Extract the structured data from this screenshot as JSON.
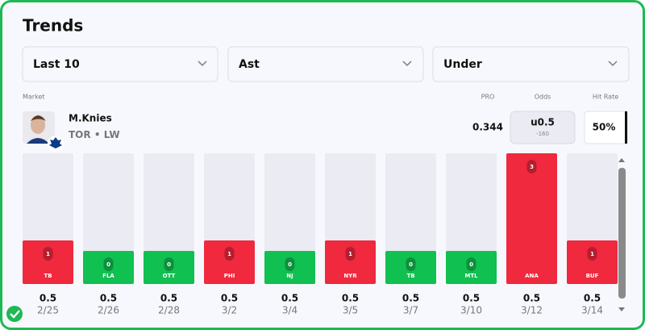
{
  "header": {
    "title": "Trends"
  },
  "filters": [
    "Last 10",
    "Ast",
    "Under"
  ],
  "labels": {
    "market": "Market",
    "pro": "PRO",
    "odds": "Odds",
    "hit_rate": "Hit Rate"
  },
  "player": {
    "name": "M.Knies",
    "team": "TOR",
    "separator": "•",
    "position": "LW"
  },
  "pro": 0.344,
  "odds": {
    "line": "u0.5",
    "price": -160
  },
  "hit_rate": "50%",
  "games": {
    "opponents": [
      "TB",
      "FLA",
      "OTT",
      "PHI",
      "NJ",
      "NYR",
      "TB",
      "MTL",
      "ANA",
      "BUF"
    ],
    "values": [
      1,
      0,
      0,
      1,
      0,
      1,
      0,
      0,
      3,
      1
    ],
    "lines": [
      0.5,
      0.5,
      0.5,
      0.5,
      0.5,
      0.5,
      0.5,
      0.5,
      0.5,
      0.5
    ],
    "dates": [
      "2/25",
      "2/26",
      "2/28",
      "3/2",
      "3/4",
      "3/5",
      "3/7",
      "3/10",
      "3/12",
      "3/14"
    ],
    "over_color": "#f0293e",
    "under_color": "#10c050"
  }
}
